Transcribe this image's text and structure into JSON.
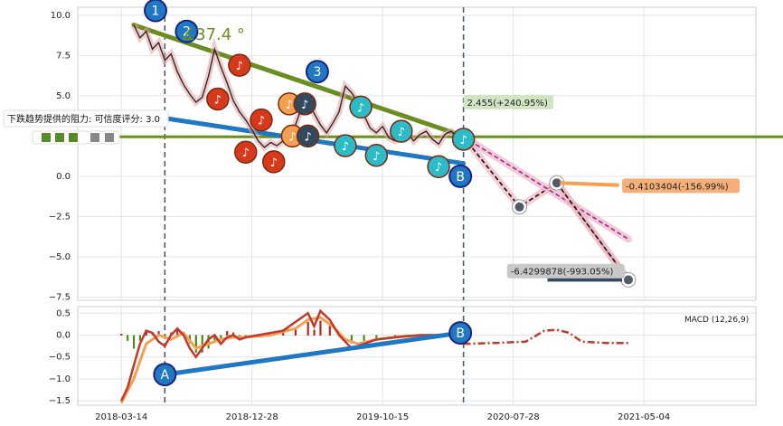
{
  "chart_data": {
    "type": "line",
    "main_panel": {
      "ylim": [
        -7.7,
        10.5
      ],
      "yticks": [
        "10.0",
        "7.5",
        "5.0",
        "2.5",
        "0.0",
        "−2.5",
        "−5.0",
        "−7.5"
      ],
      "ytick_values": [
        10,
        7.5,
        5,
        2.5,
        0,
        -2.5,
        -5,
        -7.5
      ],
      "grid": true,
      "price_series": [
        [
          0.2,
          9.4
        ],
        [
          0.3,
          8.6
        ],
        [
          0.4,
          9.0
        ],
        [
          0.5,
          7.9
        ],
        [
          0.6,
          8.3
        ],
        [
          0.7,
          7.2
        ],
        [
          0.8,
          7.6
        ],
        [
          0.9,
          6.5
        ],
        [
          1.0,
          5.7
        ],
        [
          1.1,
          5.1
        ],
        [
          1.2,
          4.6
        ],
        [
          1.3,
          4.9
        ],
        [
          1.4,
          6.2
        ],
        [
          1.5,
          7.9
        ],
        [
          1.6,
          6.8
        ],
        [
          1.7,
          5.8
        ],
        [
          1.8,
          4.7
        ],
        [
          1.9,
          4.0
        ],
        [
          2.0,
          3.5
        ],
        [
          2.1,
          2.9
        ],
        [
          2.2,
          2.2
        ],
        [
          2.3,
          1.8
        ],
        [
          2.4,
          2.1
        ],
        [
          2.5,
          1.9
        ],
        [
          2.6,
          2.2
        ],
        [
          2.7,
          2.5
        ],
        [
          2.8,
          3.2
        ],
        [
          2.9,
          4.3
        ],
        [
          3.0,
          4.8
        ],
        [
          3.1,
          3.9
        ],
        [
          3.2,
          3.2
        ],
        [
          3.3,
          2.7
        ],
        [
          3.4,
          3.3
        ],
        [
          3.5,
          4.0
        ],
        [
          3.6,
          5.6
        ],
        [
          3.7,
          5.2
        ],
        [
          3.8,
          4.6
        ],
        [
          3.9,
          3.8
        ],
        [
          4.0,
          3.0
        ],
        [
          4.1,
          2.7
        ],
        [
          4.2,
          3.1
        ],
        [
          4.3,
          2.4
        ],
        [
          4.4,
          2.2
        ],
        [
          4.5,
          2.5
        ],
        [
          4.6,
          2.7
        ],
        [
          4.7,
          2.2
        ],
        [
          4.8,
          2.6
        ],
        [
          4.9,
          2.8
        ],
        [
          5.0,
          2.3
        ],
        [
          5.1,
          2.0
        ],
        [
          5.2,
          2.6
        ],
        [
          5.3,
          2.8
        ],
        [
          5.4,
          2.45
        ],
        [
          5.5,
          2.6
        ]
      ],
      "trendlines": [
        {
          "from": [
            0.2,
            9.4
          ],
          "to": [
            5.5,
            2.5
          ],
          "color": "#6b8e23"
        },
        {
          "from": [
            0.2,
            3.9
          ],
          "to": [
            5.5,
            0.8
          ],
          "color": "#1f78c1"
        }
      ],
      "horizontal_line": {
        "y": 2.45,
        "color": "#6b8e23"
      },
      "horizontal_line_label": "3",
      "projection_paths": [
        {
          "points": [
            [
              5.5,
              2.455
            ],
            [
              6.4,
              -1.9
            ],
            [
              7.0,
              -0.41
            ],
            [
              8.15,
              -6.43
            ]
          ],
          "color": "#111111"
        },
        {
          "points": [
            [
              5.5,
              2.455
            ],
            [
              8.15,
              -3.9
            ]
          ],
          "color": "#8b2f97"
        },
        {
          "points": [
            [
              7.0,
              -0.41
            ],
            [
              8.15,
              -6.43
            ]
          ],
          "color": "#111111"
        }
      ],
      "wave_points": [
        {
          "label": "1",
          "x": 0.55,
          "y": 10.3,
          "color": "#1f78c1"
        },
        {
          "label": "2",
          "x": 1.05,
          "y": 9.0,
          "color": "#1f78c1"
        },
        {
          "label": "3",
          "x": 3.15,
          "y": 6.5,
          "color": "#1f78c1"
        },
        {
          "label": "B",
          "x": 5.45,
          "y": 0.0,
          "color": "#1f78c1"
        }
      ],
      "angle_label": "∡37.4 °",
      "annotations": [
        {
          "text": "2.455(+240.95%)",
          "x": 5.5,
          "y": 4.5,
          "bg": "#cfe6c4"
        },
        {
          "text": "-0.4103404(-156.99%)",
          "x": 8.05,
          "y": -0.7,
          "bg": "#f4b078"
        },
        {
          "text": "-6.4299878(-993.05%)",
          "x": 6.2,
          "y": -6.0,
          "bg": "#c8c8c8"
        }
      ],
      "tooltip": {
        "text": "下跌趋势提供的阻力: 可信度评分: 3.0",
        "value": "3"
      }
    },
    "macd_panel": {
      "title": "MACD (12,26,9)",
      "ylim": [
        -1.6,
        0.65
      ],
      "yticks": [
        "0.5",
        "0.0",
        "−0.5",
        "−1.0",
        "−1.5"
      ],
      "ytick_values": [
        0.5,
        0.0,
        -0.5,
        -1.0,
        -1.5
      ],
      "macd_line": [
        [
          0.0,
          -1.5
        ],
        [
          0.1,
          -1.2
        ],
        [
          0.2,
          -0.7
        ],
        [
          0.3,
          -0.2
        ],
        [
          0.4,
          0.1
        ],
        [
          0.5,
          0.05
        ],
        [
          0.6,
          -0.15
        ],
        [
          0.7,
          -0.25
        ],
        [
          0.8,
          0.0
        ],
        [
          0.9,
          0.15
        ],
        [
          1.0,
          0.0
        ],
        [
          1.1,
          -0.3
        ],
        [
          1.2,
          -0.5
        ],
        [
          1.3,
          -0.3
        ],
        [
          1.4,
          -0.1
        ],
        [
          1.5,
          0.0
        ],
        [
          1.6,
          -0.2
        ],
        [
          1.7,
          -0.05
        ],
        [
          1.8,
          0.0
        ],
        [
          1.9,
          -0.1
        ],
        [
          2.0,
          -0.05
        ],
        [
          2.2,
          0.0
        ],
        [
          2.4,
          0.05
        ],
        [
          2.6,
          0.1
        ],
        [
          2.8,
          0.3
        ],
        [
          3.0,
          0.5
        ],
        [
          3.1,
          0.2
        ],
        [
          3.2,
          0.55
        ],
        [
          3.35,
          0.35
        ],
        [
          3.5,
          0.0
        ],
        [
          3.7,
          -0.3
        ],
        [
          3.9,
          -0.2
        ],
        [
          4.1,
          -0.1
        ],
        [
          4.4,
          -0.05
        ],
        [
          4.8,
          0.0
        ],
        [
          5.1,
          0.0
        ]
      ],
      "signal_line": [
        [
          0.0,
          -1.55
        ],
        [
          0.2,
          -1.0
        ],
        [
          0.4,
          -0.2
        ],
        [
          0.6,
          0.0
        ],
        [
          0.8,
          -0.1
        ],
        [
          1.0,
          0.05
        ],
        [
          1.2,
          -0.3
        ],
        [
          1.4,
          -0.2
        ],
        [
          1.6,
          -0.1
        ],
        [
          1.8,
          -0.05
        ],
        [
          2.0,
          -0.05
        ],
        [
          2.4,
          0.0
        ],
        [
          2.8,
          0.15
        ],
        [
          3.0,
          0.35
        ],
        [
          3.2,
          0.4
        ],
        [
          3.4,
          0.2
        ],
        [
          3.6,
          -0.1
        ],
        [
          3.8,
          -0.2
        ],
        [
          4.1,
          -0.1
        ],
        [
          4.6,
          -0.02
        ],
        [
          5.1,
          0.0
        ]
      ],
      "projection": [
        [
          5.5,
          -0.2
        ],
        [
          6.0,
          -0.18
        ],
        [
          6.5,
          -0.15
        ],
        [
          6.8,
          0.1
        ],
        [
          7.0,
          0.12
        ],
        [
          7.2,
          0.05
        ],
        [
          7.4,
          -0.15
        ],
        [
          7.8,
          -0.18
        ],
        [
          8.15,
          -0.18
        ]
      ],
      "trendline": {
        "from": [
          0.7,
          -0.9
        ],
        "to": [
          5.45,
          0.05
        ],
        "color": "#1f78c1"
      },
      "points": [
        {
          "label": "A",
          "x": 0.7,
          "y": -0.9
        },
        {
          "label": "B",
          "x": 5.45,
          "y": 0.05
        }
      ]
    },
    "x_ticks": [
      "2018-03-14",
      "2018-12-28",
      "2019-10-15",
      "2020-07-28",
      "2021-05-04"
    ],
    "x_tick_positions": [
      0,
      2.1,
      4.2,
      6.3,
      8.4
    ],
    "xlim": [
      -0.7,
      10.2
    ],
    "vertical_lines": [
      0.7,
      5.5
    ]
  }
}
